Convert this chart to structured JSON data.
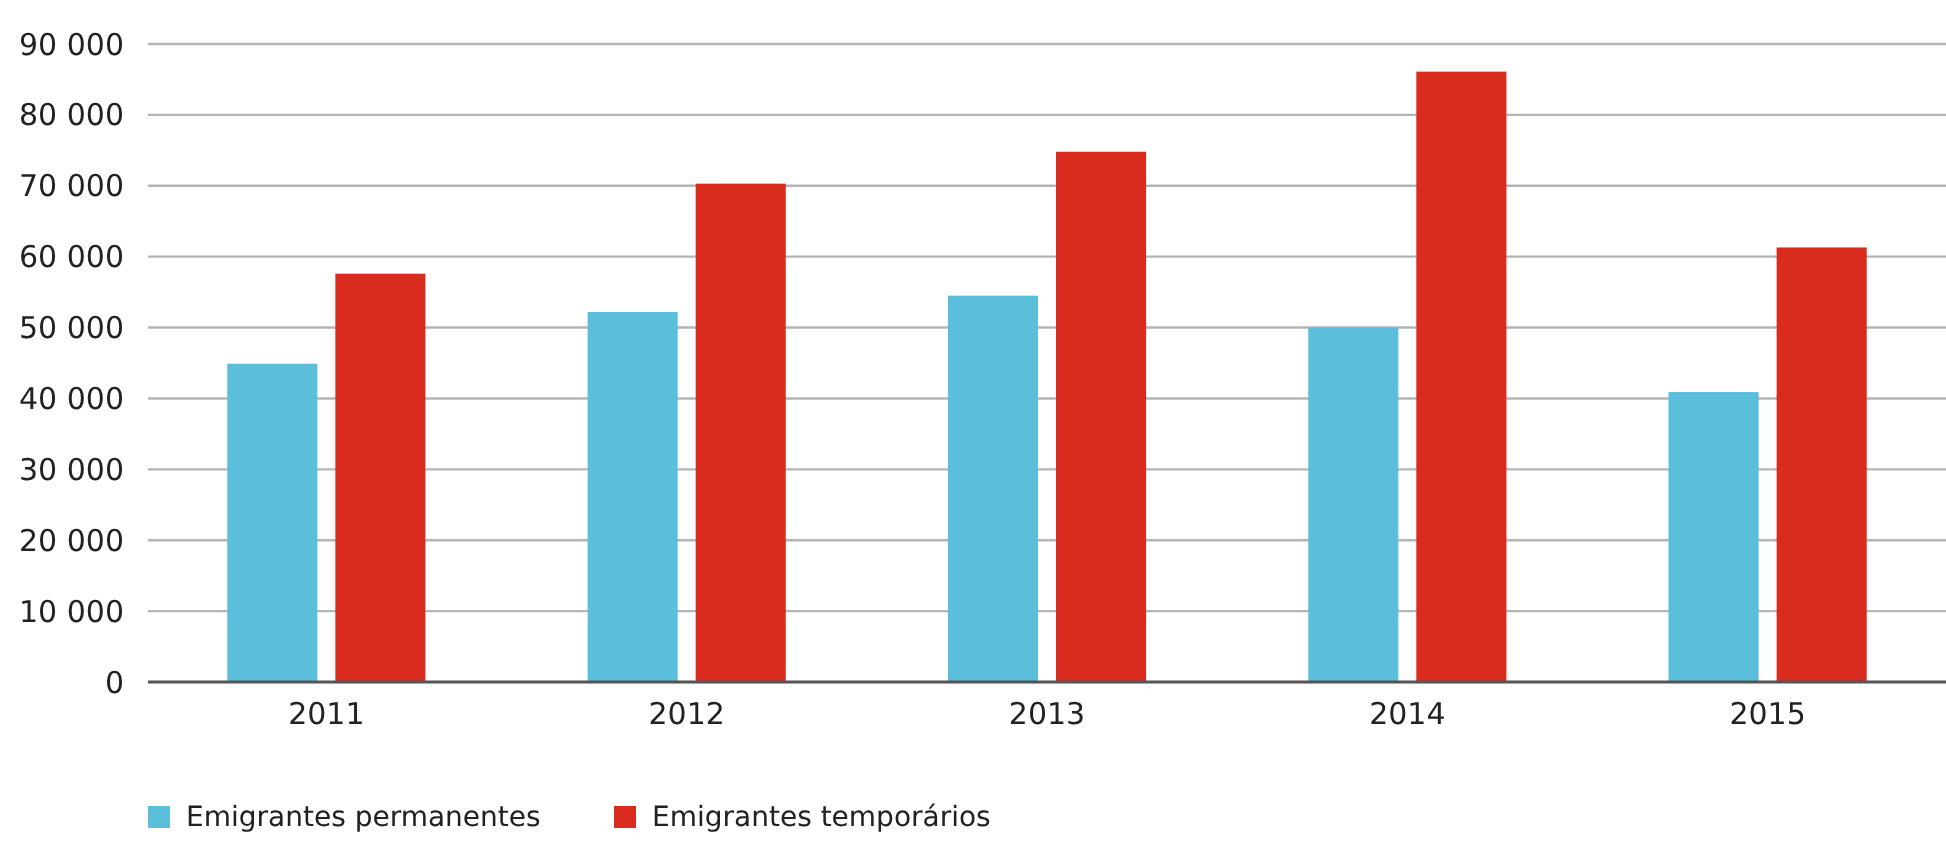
{
  "chart_data": {
    "type": "bar",
    "categories": [
      "2011",
      "2012",
      "2013",
      "2014",
      "2015"
    ],
    "series": [
      {
        "name": "Emigrantes permanentes",
        "color": "#5bbfdc",
        "values": [
          44900,
          52200,
          54500,
          50000,
          40900
        ]
      },
      {
        "name": "Emigrantes temporários",
        "color": "#d92c1e",
        "values": [
          57600,
          70300,
          74800,
          86100,
          61300
        ]
      }
    ],
    "ylim": [
      0,
      90000
    ],
    "yticks": [
      {
        "value": 0,
        "label": "0"
      },
      {
        "value": 10000,
        "label": "10 000"
      },
      {
        "value": 20000,
        "label": "20 000"
      },
      {
        "value": 30000,
        "label": "30 000"
      },
      {
        "value": 40000,
        "label": "40 000"
      },
      {
        "value": 50000,
        "label": "50 000"
      },
      {
        "value": 60000,
        "label": "60 000"
      },
      {
        "value": 70000,
        "label": "70 000"
      },
      {
        "value": 80000,
        "label": "80 000"
      },
      {
        "value": 90000,
        "label": "90 000"
      }
    ],
    "grid": "y",
    "legend": "bottom left"
  }
}
